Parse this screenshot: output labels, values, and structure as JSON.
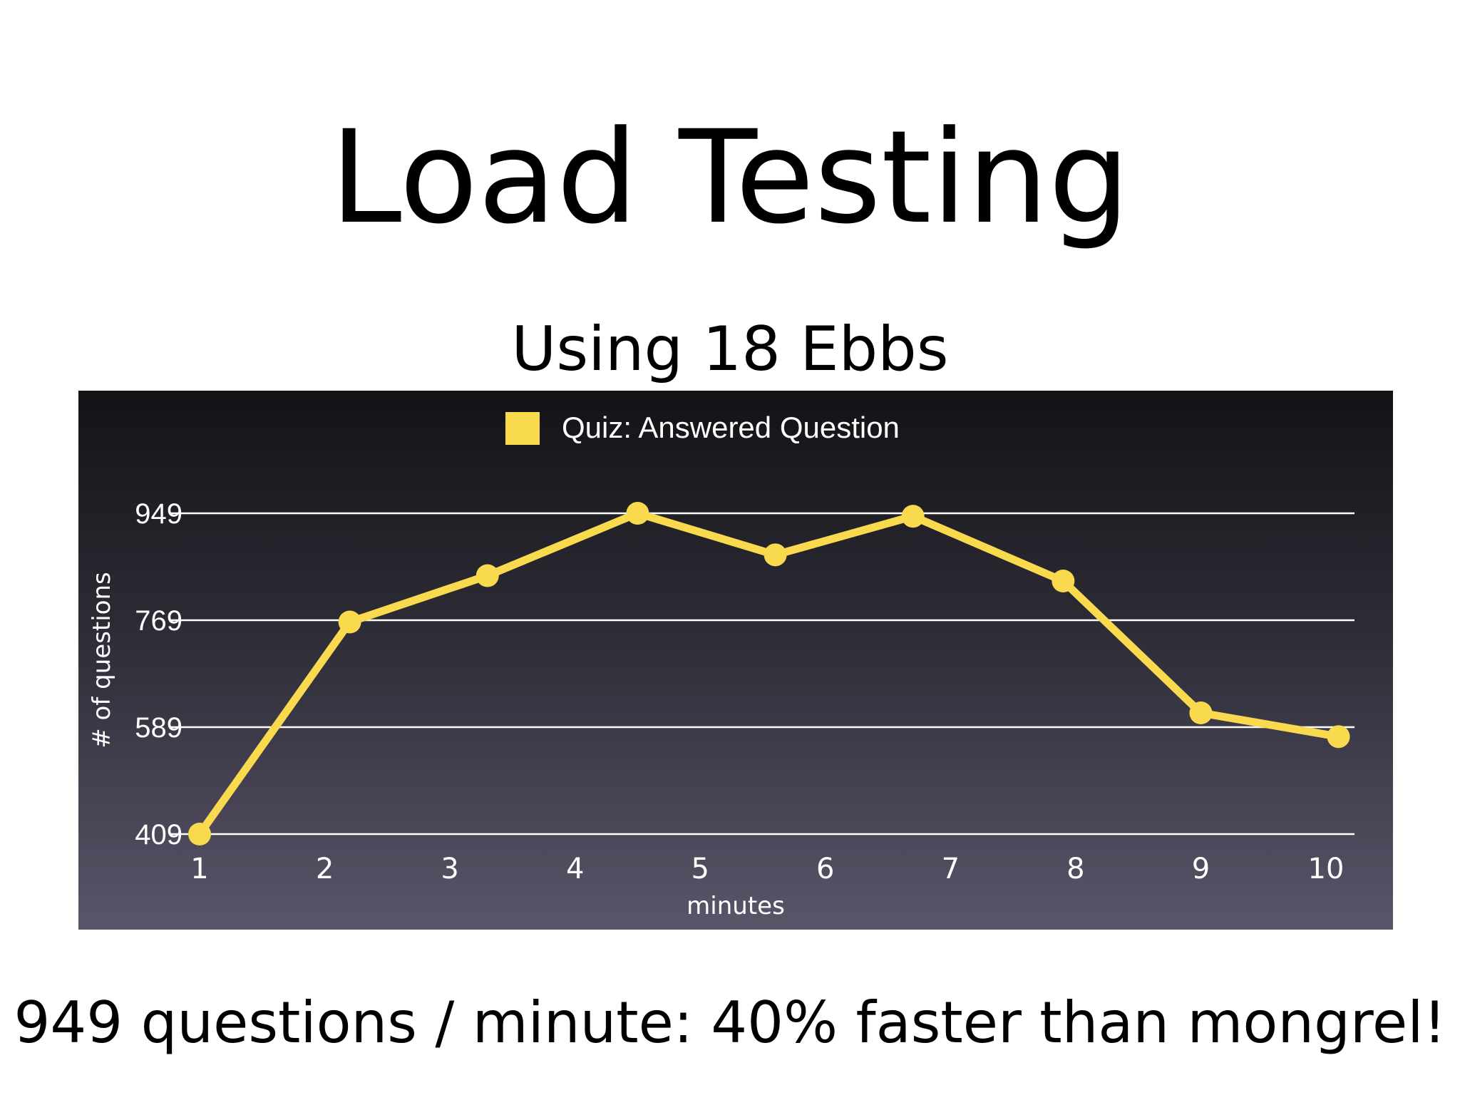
{
  "slide": {
    "title": "Load Testing",
    "subtitle": "Using 18 Ebbs",
    "footer": "949 questions / minute:  40% faster than mongrel!"
  },
  "colors": {
    "series": "#f9d94e",
    "grid": "#ffffff",
    "text": "#ffffff"
  },
  "chart_data": {
    "type": "line",
    "title": "",
    "xlabel": "minutes",
    "ylabel": "# of questions",
    "x_ticks": [
      "1",
      "2",
      "3",
      "4",
      "5",
      "6",
      "7",
      "8",
      "9",
      "10"
    ],
    "y_ticks": [
      409,
      589,
      769,
      949
    ],
    "ylim": [
      409,
      949
    ],
    "xlim": [
      1,
      10
    ],
    "grid": true,
    "legend": "top-center",
    "series": [
      {
        "name": "Quiz: Answered Question",
        "x": [
          1,
          2.2,
          3.3,
          4.5,
          5.6,
          6.7,
          7.9,
          9,
          10.1
        ],
        "values": [
          409,
          766,
          844,
          949,
          879,
          944,
          835,
          613,
          573
        ]
      }
    ]
  }
}
